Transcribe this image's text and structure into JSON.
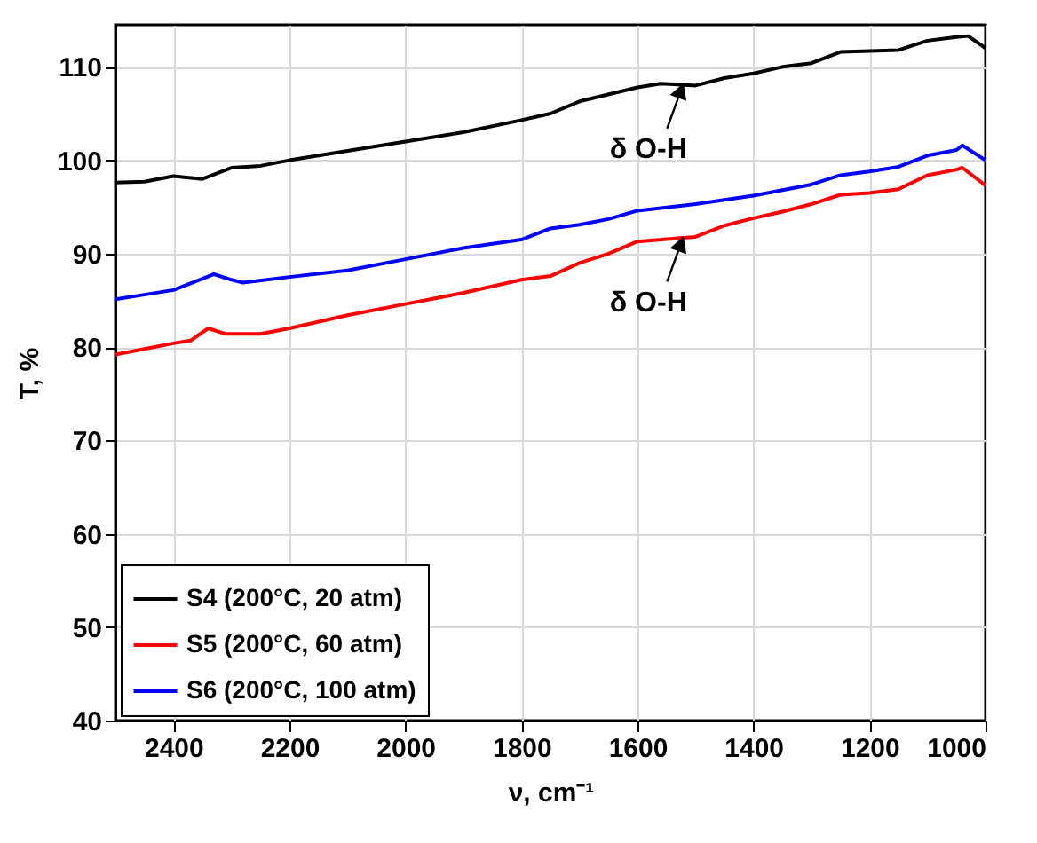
{
  "chart_data": {
    "type": "line",
    "xlabel": "ν, cm⁻¹",
    "ylabel": "T, %",
    "xlim": [
      2500,
      1000
    ],
    "ylim": [
      40,
      114.5
    ],
    "xticks": [
      2400,
      2200,
      2000,
      1800,
      1600,
      1400,
      1200,
      1000
    ],
    "yticks": [
      40,
      50,
      60,
      70,
      80,
      90,
      100,
      110
    ],
    "grid": true,
    "legend": "bottom left",
    "line_style": "solid",
    "marker": "none",
    "x": [
      2500,
      2450,
      2400,
      2350,
      2300,
      2250,
      2200,
      2100,
      2000,
      1900,
      1800,
      1750,
      1700,
      1600,
      1560,
      1500,
      1450,
      1400,
      1350,
      1300,
      1250,
      1200,
      1150,
      1100,
      1050,
      1030,
      1000
    ],
    "series": [
      {
        "name": "S4 (200°C, 20 atm)",
        "color": "#000000",
        "values": [
          97.6,
          97.7,
          98.3,
          98.0,
          99.2,
          99.4,
          100.0,
          101.0,
          102.0,
          103.0,
          104.3,
          105.0,
          106.3,
          107.8,
          108.2,
          108.0,
          108.8,
          109.3,
          110.0,
          110.4,
          111.6,
          111.7,
          111.8,
          112.8,
          113.2,
          113.3,
          112.0
        ]
      },
      {
        "name": "S5 (200°C, 60 atm)",
        "color": "#ff0000",
        "x": [
          2500,
          2450,
          2400,
          2370,
          2340,
          2310,
          2250,
          2200,
          2100,
          2000,
          1900,
          1800,
          1750,
          1700,
          1650,
          1600,
          1500,
          1450,
          1400,
          1350,
          1300,
          1250,
          1200,
          1150,
          1100,
          1050,
          1040,
          1000
        ],
        "values": [
          79.2,
          79.8,
          80.4,
          80.7,
          82.0,
          81.4,
          81.4,
          82.0,
          83.4,
          84.6,
          85.8,
          87.2,
          87.6,
          89.0,
          90.0,
          91.3,
          91.8,
          93.0,
          93.8,
          94.5,
          95.3,
          96.3,
          96.5,
          96.9,
          98.4,
          99.0,
          99.2,
          97.3
        ]
      },
      {
        "name": "S6 (200°C, 100 atm)",
        "color": "#0000ff",
        "x": [
          2500,
          2450,
          2400,
          2350,
          2330,
          2300,
          2280,
          2200,
          2100,
          2000,
          1900,
          1800,
          1750,
          1700,
          1650,
          1600,
          1500,
          1400,
          1350,
          1300,
          1250,
          1200,
          1150,
          1100,
          1050,
          1040,
          1000
        ],
        "values": [
          85.1,
          85.6,
          86.1,
          87.3,
          87.8,
          87.2,
          86.9,
          87.5,
          88.2,
          89.4,
          90.6,
          91.5,
          92.7,
          93.1,
          93.7,
          94.6,
          95.3,
          96.2,
          96.8,
          97.4,
          98.4,
          98.8,
          99.3,
          100.5,
          101.1,
          101.6,
          100.0
        ]
      }
    ],
    "annotations": [
      {
        "text": "δ O-H",
        "x": 1520,
        "y": 108.2
      },
      {
        "text": "δ O-H",
        "x": 1520,
        "y": 91.8
      }
    ]
  }
}
